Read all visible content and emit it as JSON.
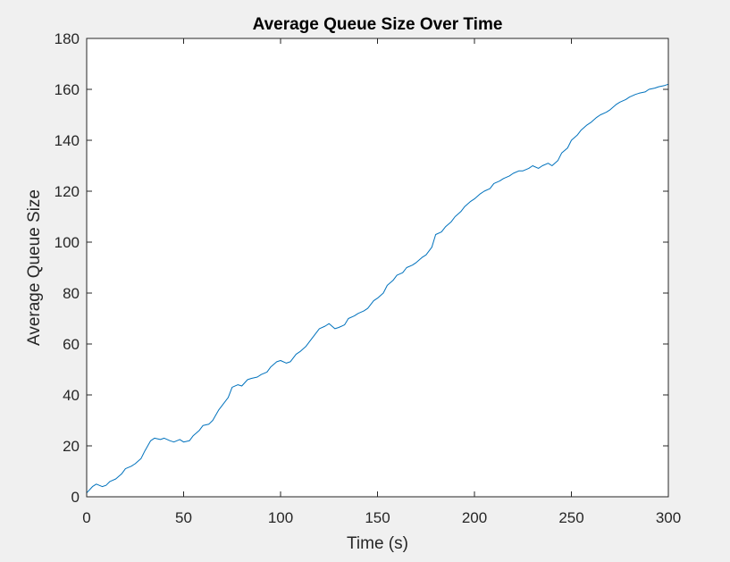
{
  "chart_data": {
    "type": "line",
    "title": "Average Queue Size Over Time",
    "xlabel": "Time (s)",
    "ylabel": "Average Queue Size",
    "xlim": [
      0,
      300
    ],
    "ylim": [
      0,
      180
    ],
    "xticks": [
      0,
      50,
      100,
      150,
      200,
      250,
      300
    ],
    "yticks": [
      0,
      20,
      40,
      60,
      80,
      100,
      120,
      140,
      160,
      180
    ],
    "grid": false,
    "series": [
      {
        "color": "#0072bd",
        "x": [
          0,
          3,
          5,
          8,
          10,
          12,
          15,
          18,
          20,
          23,
          25,
          28,
          30,
          33,
          35,
          38,
          40,
          43,
          45,
          48,
          50,
          53,
          55,
          58,
          60,
          63,
          65,
          68,
          70,
          73,
          75,
          78,
          80,
          83,
          85,
          88,
          90,
          93,
          95,
          98,
          100,
          103,
          105,
          108,
          110,
          113,
          115,
          118,
          120,
          123,
          125,
          128,
          130,
          133,
          135,
          138,
          140,
          143,
          145,
          148,
          150,
          153,
          155,
          158,
          160,
          163,
          165,
          168,
          170,
          173,
          175,
          178,
          180,
          183,
          185,
          188,
          190,
          193,
          195,
          198,
          200,
          203,
          205,
          208,
          210,
          213,
          215,
          218,
          220,
          223,
          225,
          228,
          230,
          233,
          235,
          238,
          240,
          243,
          245,
          248,
          250,
          253,
          255,
          258,
          260,
          263,
          265,
          268,
          270,
          273,
          275,
          278,
          280,
          283,
          285,
          288,
          290,
          293,
          295,
          298,
          300
        ],
        "y": [
          1.5,
          4,
          5,
          4,
          4.5,
          6,
          7,
          9,
          11,
          12,
          13,
          15,
          18,
          22,
          23,
          22.5,
          23,
          22,
          21.5,
          22.5,
          21.5,
          22,
          24,
          26,
          28,
          28.5,
          30,
          34,
          36,
          39,
          43,
          44,
          43.5,
          46,
          46.5,
          47,
          48,
          49,
          51,
          53,
          53.5,
          52.5,
          53,
          56,
          57,
          59,
          61,
          64,
          66,
          67,
          68,
          66,
          66.5,
          67.5,
          70,
          71,
          72,
          73,
          74,
          77,
          78,
          80,
          83,
          85,
          87,
          88,
          90,
          91,
          92,
          94,
          95,
          98,
          103,
          104,
          106,
          108,
          110,
          112,
          114,
          116,
          117,
          119,
          120,
          121,
          123,
          124,
          125,
          126,
          127,
          128,
          128,
          129,
          130,
          129,
          130,
          131,
          130,
          132,
          135,
          137,
          140,
          142,
          144,
          146,
          147,
          149,
          150,
          151,
          152,
          154,
          155,
          156,
          157,
          158,
          158.5,
          159,
          160,
          160.5,
          161,
          161.5,
          162
        ]
      }
    ]
  }
}
